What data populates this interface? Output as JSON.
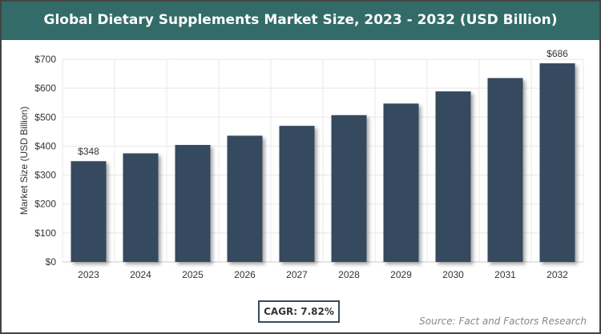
{
  "chart_data": {
    "type": "bar",
    "title": "Global Dietary Supplements Market Size, 2023 - 2032 (USD Billion)",
    "xlabel": "",
    "ylabel": "Market Size (USD Billion)",
    "categories": [
      "2023",
      "2024",
      "2025",
      "2026",
      "2027",
      "2028",
      "2029",
      "2030",
      "2031",
      "2032"
    ],
    "values": [
      348,
      375,
      404,
      436,
      470,
      507,
      547,
      589,
      635,
      686
    ],
    "data_labels": {
      "0": "$348",
      "9": "$686"
    },
    "ylim": [
      0,
      700
    ],
    "yticks": [
      0,
      100,
      200,
      300,
      400,
      500,
      600,
      700
    ],
    "ytick_labels": [
      "$0",
      "$100",
      "$200",
      "$300",
      "$400",
      "$500",
      "$600",
      "$700"
    ],
    "grid": true,
    "bar_color": "#364a5f"
  },
  "footer": {
    "cagr": "CAGR: 7.82%",
    "source": "Source: Fact and Factors Research"
  },
  "colors": {
    "header": "#336b68",
    "bar": "#364a5f"
  }
}
